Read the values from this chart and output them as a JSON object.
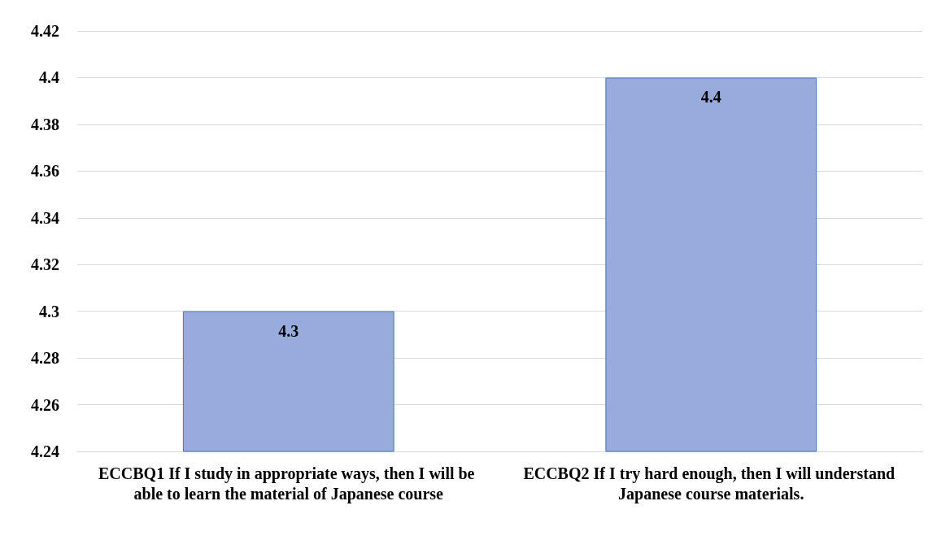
{
  "chart_data": {
    "type": "bar",
    "categories": [
      "ECCBQ1 If I study in appropriate ways, then I will be able to learn the material of Japanese course",
      "ECCBQ2 If I try hard enough, then I will understand Japanese course materials."
    ],
    "values": [
      4.3,
      4.4
    ],
    "color": "#97acdc",
    "ylim": [
      4.24,
      4.42
    ],
    "yticks": [
      4.24,
      4.26,
      4.28,
      4.3,
      4.32,
      4.34,
      4.36,
      4.38,
      4.4,
      4.42
    ],
    "grid": "y",
    "data_labels": true
  }
}
